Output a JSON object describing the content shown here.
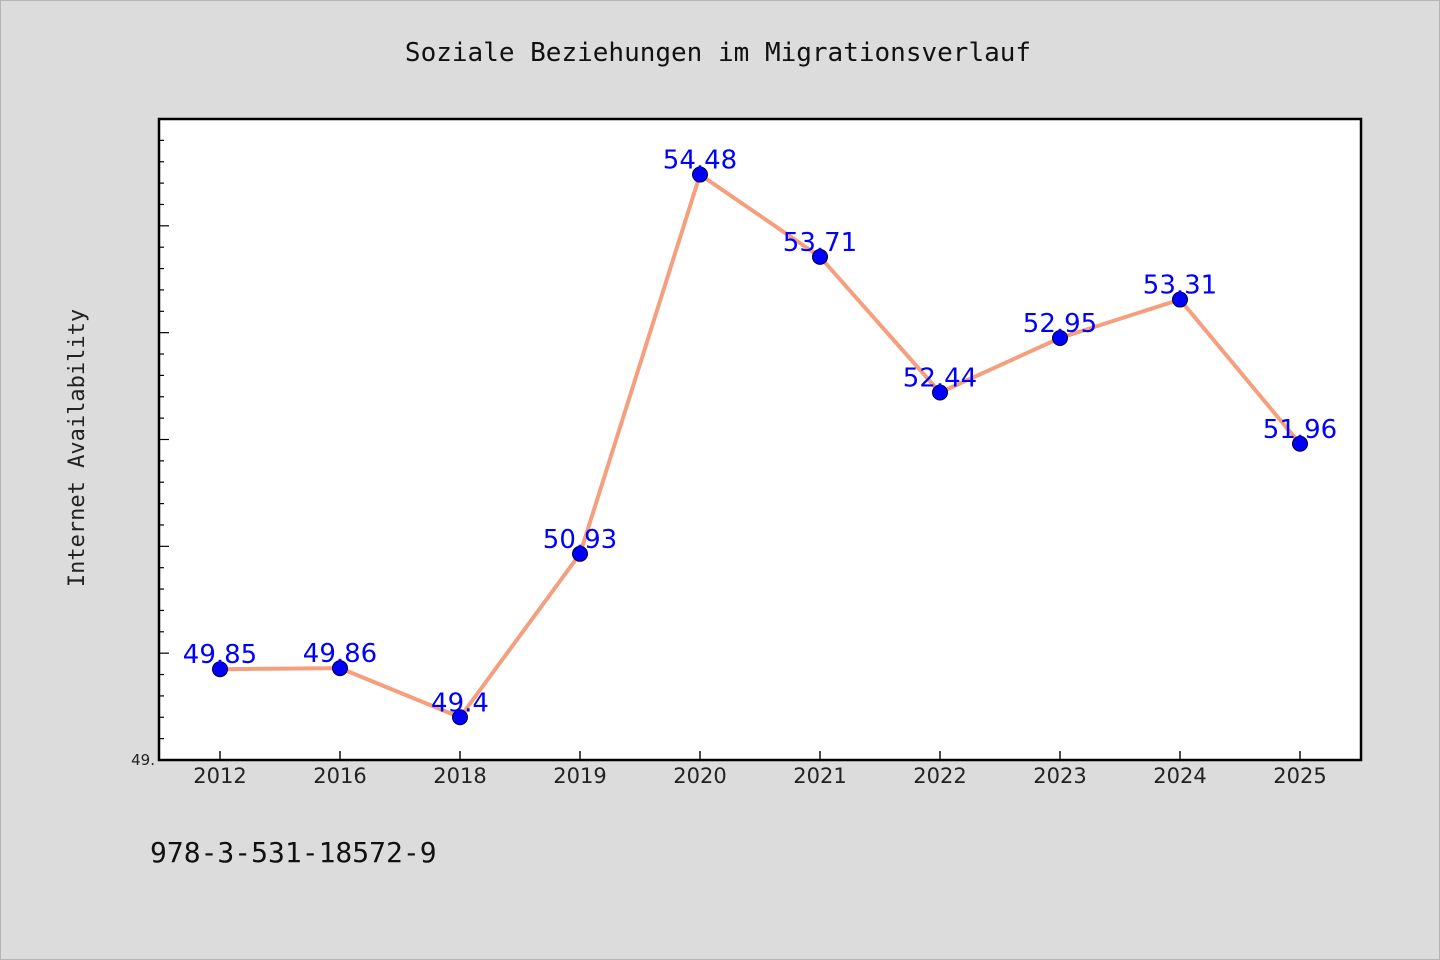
{
  "chart_data": {
    "type": "line",
    "title": "Soziale Beziehungen im Migrationsverlauf",
    "xlabel": "",
    "ylabel": "Internet Availability",
    "categories": [
      "2012",
      "2016",
      "2018",
      "2019",
      "2020",
      "2021",
      "2022",
      "2023",
      "2024",
      "2025"
    ],
    "series": [
      {
        "values": [
          49.85,
          49.86,
          49.4,
          50.93,
          54.48,
          53.71,
          52.44,
          52.95,
          53.31,
          51.96
        ],
        "labels": [
          "49.85",
          "49.86",
          "49.4",
          "50.93",
          "54.48",
          "53.71",
          "52.44",
          "52.95",
          "53.31",
          "51.96"
        ]
      }
    ],
    "ylim": [
      49.0,
      55.0
    ],
    "ytick_label": "49.",
    "grid": false,
    "colors": {
      "line": "#f4a07f",
      "marker": "#0000ff",
      "data_label": "#0000ff",
      "background": "#dcdcdc",
      "plot_area": "#ffffff"
    }
  },
  "footer": {
    "isbn": "978-3-531-18572-9"
  }
}
